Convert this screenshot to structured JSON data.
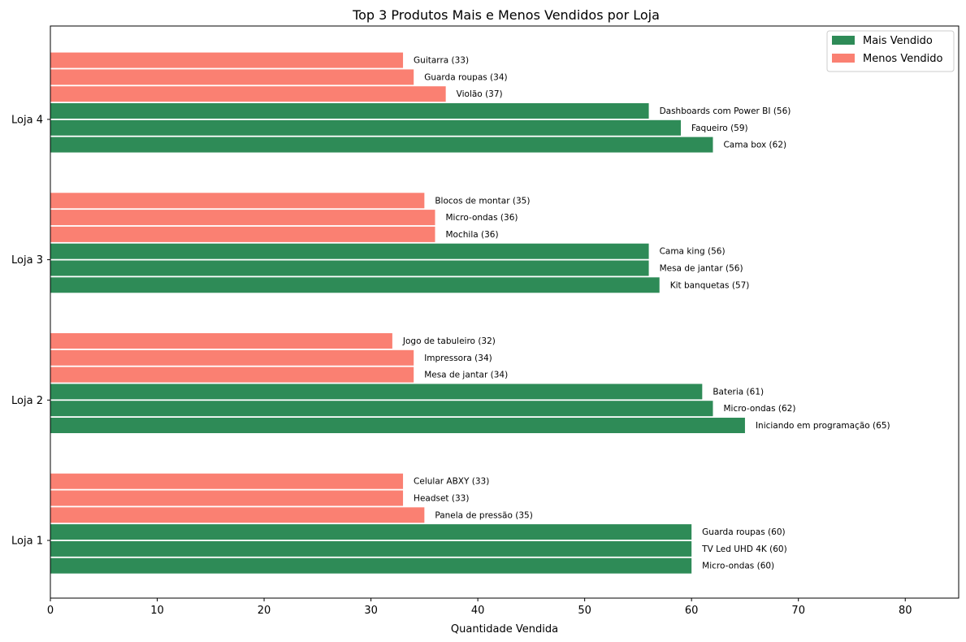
{
  "chart_data": {
    "type": "bar",
    "orientation": "horizontal",
    "title": "Top 3 Produtos Mais e Menos Vendidos por Loja",
    "xlabel": "Quantidade Vendida",
    "ylabel": "",
    "xlim": [
      0,
      85
    ],
    "xticks": [
      0,
      10,
      20,
      30,
      40,
      50,
      60,
      70,
      80
    ],
    "grid": false,
    "legend": {
      "position": "top-right",
      "entries": [
        {
          "label": "Mais Vendido",
          "color": "#2e8b57"
        },
        {
          "label": "Menos Vendido",
          "color": "#fa8072"
        }
      ]
    },
    "categories": [
      "Loja 1",
      "Loja 2",
      "Loja 3",
      "Loja 4"
    ],
    "stores": [
      {
        "name": "Loja 1",
        "mais_vendido": [
          {
            "label": "Micro-ondas (60)",
            "value": 60
          },
          {
            "label": "TV Led UHD 4K (60)",
            "value": 60
          },
          {
            "label": "Guarda roupas (60)",
            "value": 60
          }
        ],
        "menos_vendido": [
          {
            "label": "Panela de pressão (35)",
            "value": 35
          },
          {
            "label": "Headset (33)",
            "value": 33
          },
          {
            "label": "Celular ABXY (33)",
            "value": 33
          }
        ]
      },
      {
        "name": "Loja 2",
        "mais_vendido": [
          {
            "label": "Iniciando em programação (65)",
            "value": 65
          },
          {
            "label": "Micro-ondas (62)",
            "value": 62
          },
          {
            "label": "Bateria (61)",
            "value": 61
          }
        ],
        "menos_vendido": [
          {
            "label": "Mesa de jantar (34)",
            "value": 34
          },
          {
            "label": "Impressora (34)",
            "value": 34
          },
          {
            "label": "Jogo de tabuleiro (32)",
            "value": 32
          }
        ]
      },
      {
        "name": "Loja 3",
        "mais_vendido": [
          {
            "label": "Kit banquetas (57)",
            "value": 57
          },
          {
            "label": "Mesa de jantar (56)",
            "value": 56
          },
          {
            "label": "Cama king (56)",
            "value": 56
          }
        ],
        "menos_vendido": [
          {
            "label": "Mochila (36)",
            "value": 36
          },
          {
            "label": "Micro-ondas (36)",
            "value": 36
          },
          {
            "label": "Blocos de montar (35)",
            "value": 35
          }
        ]
      },
      {
        "name": "Loja 4",
        "mais_vendido": [
          {
            "label": "Cama box (62)",
            "value": 62
          },
          {
            "label": "Faqueiro (59)",
            "value": 59
          },
          {
            "label": "Dashboards com Power BI (56)",
            "value": 56
          }
        ],
        "menos_vendido": [
          {
            "label": "Violão (37)",
            "value": 37
          },
          {
            "label": "Guarda roupas (34)",
            "value": 34
          },
          {
            "label": "Guitarra (33)",
            "value": 33
          }
        ]
      }
    ]
  }
}
